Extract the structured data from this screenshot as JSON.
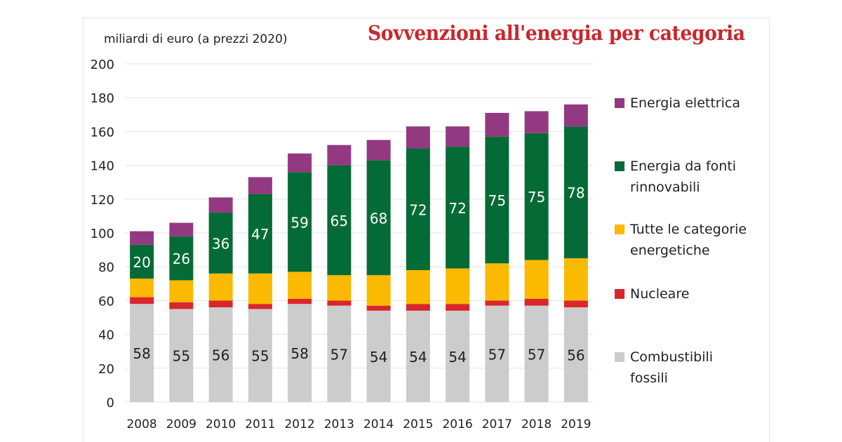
{
  "chart_data": {
    "type": "bar",
    "stacked": true,
    "title": "Sovvenzioni all'energia per categoria",
    "ylabel": "miliardi di euro (a prezzi 2020)",
    "xlabel": "",
    "ylim": [
      0,
      200
    ],
    "yticks": [
      0,
      20,
      40,
      60,
      80,
      100,
      120,
      140,
      160,
      180,
      200
    ],
    "grid": true,
    "legend_position": "right",
    "categories": [
      "2008",
      "2009",
      "2010",
      "2011",
      "2012",
      "2013",
      "2014",
      "2015",
      "2016",
      "2017",
      "2018",
      "2019"
    ],
    "series": [
      {
        "name": "Combustibili fossili",
        "color": "#cccccc",
        "labeled": true,
        "label_color": "#222222",
        "values": [
          58,
          55,
          56,
          55,
          58,
          57,
          54,
          54,
          54,
          57,
          57,
          56
        ]
      },
      {
        "name": "Nucleare",
        "color": "#d9262b",
        "labeled": false,
        "values": [
          4,
          4,
          4,
          3,
          3,
          3,
          3,
          4,
          4,
          3,
          4,
          4
        ]
      },
      {
        "name": "Tutte le categorie energetiche",
        "color": "#fbb900",
        "labeled": false,
        "values": [
          11,
          13,
          16,
          18,
          16,
          15,
          18,
          20,
          21,
          22,
          23,
          25
        ]
      },
      {
        "name": "Energia da fonti rinnovabili",
        "color": "#056b36",
        "labeled": true,
        "label_color": "#ffffff",
        "values": [
          20,
          26,
          36,
          47,
          59,
          65,
          68,
          72,
          72,
          75,
          75,
          78
        ]
      },
      {
        "name": "Energia elettrica",
        "color": "#933982",
        "labeled": false,
        "values": [
          8,
          8,
          9,
          10,
          11,
          12,
          12,
          13,
          12,
          14,
          13,
          13
        ]
      }
    ]
  },
  "legend": [
    {
      "line1": "Energia elettrica",
      "line2": "",
      "color": "#933982"
    },
    {
      "line1": "Energia da fonti",
      "line2": "rinnovabili",
      "color": "#056b36"
    },
    {
      "line1": "Tutte le categorie",
      "line2": "energetiche",
      "color": "#fbb900"
    },
    {
      "line1": "Nucleare",
      "line2": "",
      "color": "#d9262b"
    },
    {
      "line1": "Combustibili",
      "line2": "fossili",
      "color": "#cccccc"
    }
  ]
}
